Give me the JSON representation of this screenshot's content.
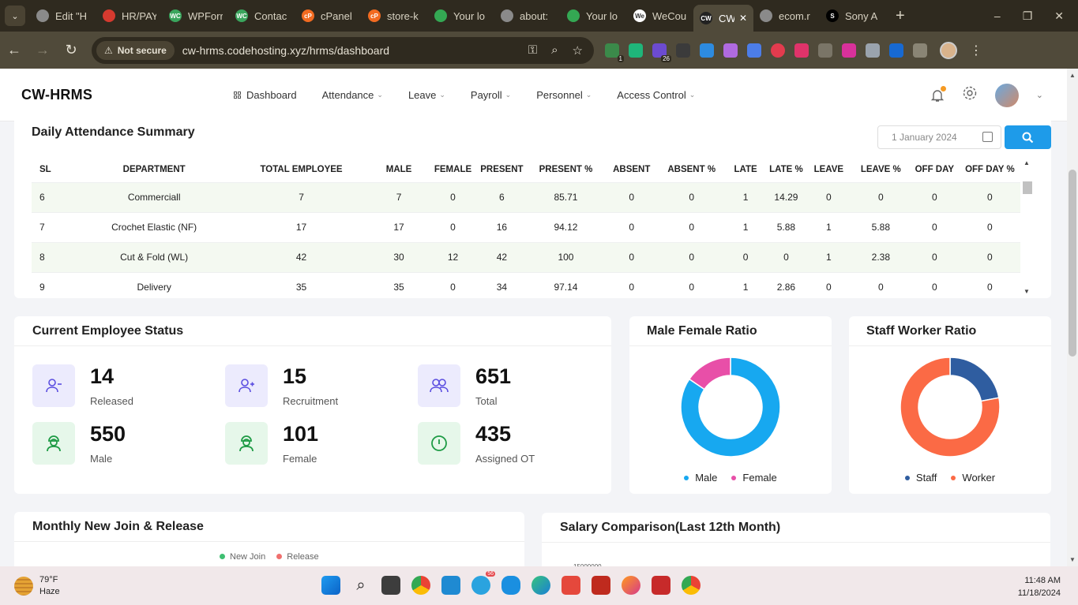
{
  "browser": {
    "tabs": [
      {
        "label": "Edit \"H",
        "color": "#8a8a8a",
        "glyph": ""
      },
      {
        "label": "HR/PAY",
        "color": "#d63a2f",
        "glyph": ""
      },
      {
        "label": "WPForr",
        "color": "#3aa55d",
        "glyph": "WC"
      },
      {
        "label": "Contac",
        "color": "#3aa55d",
        "glyph": "WC"
      },
      {
        "label": "cPanel",
        "color": "#f26b21",
        "glyph": "cP"
      },
      {
        "label": "store-k",
        "color": "#f26b21",
        "glyph": "cP"
      },
      {
        "label": "Your lo",
        "color": "#34a853",
        "glyph": ""
      },
      {
        "label": "about:",
        "color": "#8a8a8a",
        "glyph": ""
      },
      {
        "label": "Your lo",
        "color": "#34a853",
        "glyph": ""
      },
      {
        "label": "WeCou",
        "color": "#ffffff",
        "glyph": "We"
      },
      {
        "label": "CW",
        "color": "#222222",
        "glyph": "CW"
      },
      {
        "label": "ecom.r",
        "color": "#8a8a8a",
        "glyph": ""
      },
      {
        "label": "Sony A",
        "color": "#000000",
        "glyph": "S"
      }
    ],
    "not_secure_label": "Not secure",
    "url": "cw-hrms.codehosting.xyz/hrms/dashboard",
    "extension_badges": {
      "first": "1",
      "third": "26"
    }
  },
  "app": {
    "brand": "CW-HRMS",
    "nav": {
      "dashboard": "Dashboard",
      "attendance": "Attendance",
      "leave": "Leave",
      "payroll": "Payroll",
      "personnel": "Personnel",
      "access_control": "Access Control"
    }
  },
  "attendance": {
    "title": "Daily Attendance Summary",
    "date_placeholder": "1 January 2024",
    "columns": [
      "SL",
      "DEPARTMENT",
      "TOTAL EMPLOYEE",
      "MALE",
      "FEMALE",
      "PRESENT",
      "PRESENT %",
      "ABSENT",
      "ABSENT %",
      "LATE",
      "LATE %",
      "LEAVE",
      "LEAVE %",
      "OFF DAY",
      "OFF DAY %"
    ],
    "rows": [
      [
        "6",
        "Commerciall",
        "7",
        "7",
        "0",
        "6",
        "85.71",
        "0",
        "0",
        "1",
        "14.29",
        "0",
        "0",
        "0",
        "0"
      ],
      [
        "7",
        "Crochet Elastic (NF)",
        "17",
        "17",
        "0",
        "16",
        "94.12",
        "0",
        "0",
        "1",
        "5.88",
        "1",
        "5.88",
        "0",
        "0"
      ],
      [
        "8",
        "Cut & Fold (WL)",
        "42",
        "30",
        "12",
        "42",
        "100",
        "0",
        "0",
        "0",
        "0",
        "1",
        "2.38",
        "0",
        "0"
      ],
      [
        "9",
        "Delivery",
        "35",
        "35",
        "0",
        "34",
        "97.14",
        "0",
        "0",
        "1",
        "2.86",
        "0",
        "0",
        "0",
        "0"
      ]
    ]
  },
  "employee_status": {
    "title": "Current Employee Status",
    "stats": [
      {
        "value": "14",
        "label": "Released",
        "icon": "user-minus-icon"
      },
      {
        "value": "15",
        "label": "Recruitment",
        "icon": "user-plus-icon"
      },
      {
        "value": "651",
        "label": "Total",
        "icon": "users-icon"
      },
      {
        "value": "550",
        "label": "Male",
        "icon": "male-worker-icon"
      },
      {
        "value": "101",
        "label": "Female",
        "icon": "female-worker-icon"
      },
      {
        "value": "435",
        "label": "Assigned OT",
        "icon": "clock-icon"
      }
    ]
  },
  "male_female": {
    "title": "Male Female Ratio",
    "legend": [
      "Male",
      "Female"
    ],
    "colors": [
      "#17a8f0",
      "#e84fa8"
    ],
    "values": [
      550,
      101
    ]
  },
  "staff_worker": {
    "title": "Staff Worker Ratio",
    "legend": [
      "Staff",
      "Worker"
    ],
    "colors": [
      "#2f5da0",
      "#fb6a45"
    ],
    "values": [
      22,
      78
    ]
  },
  "monthly": {
    "title": "Monthly New Join & Release",
    "legend": [
      "New Join",
      "Release"
    ],
    "colors": [
      "#3fbf72",
      "#f0706e"
    ]
  },
  "salary": {
    "title": "Salary Comparison(Last 12th Month)",
    "top_tick": "15000000"
  },
  "taskbar": {
    "temperature": "79°F",
    "condition": "Haze",
    "time": "11:48 AM",
    "date": "11/18/2024",
    "telegram_badge": "56"
  }
}
